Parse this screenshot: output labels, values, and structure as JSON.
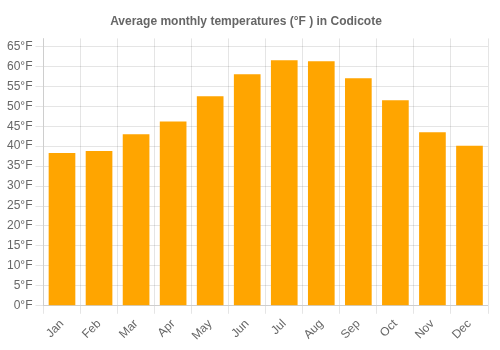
{
  "chart_data": {
    "type": "bar",
    "title": "Average monthly temperatures (°F ) in Codicote",
    "categories": [
      "Jan",
      "Feb",
      "Mar",
      "Apr",
      "May",
      "Jun",
      "Jul",
      "Aug",
      "Sep",
      "Oct",
      "Nov",
      "Dec"
    ],
    "values": [
      38.3,
      38.8,
      43.0,
      46.2,
      52.5,
      58.0,
      61.5,
      61.3,
      57.0,
      51.5,
      43.5,
      40.1
    ],
    "color": "#FFA500",
    "ylim": [
      0,
      67
    ],
    "yticks": [
      {
        "value": 0,
        "label": "0°F"
      },
      {
        "value": 5,
        "label": "5°F"
      },
      {
        "value": 10,
        "label": "10°F"
      },
      {
        "value": 15,
        "label": "15°F"
      },
      {
        "value": 20,
        "label": "20°F"
      },
      {
        "value": 25,
        "label": "25°F"
      },
      {
        "value": 30,
        "label": "30°F"
      },
      {
        "value": 35,
        "label": "35°F"
      },
      {
        "value": 40,
        "label": "40°F"
      },
      {
        "value": 45,
        "label": "45°F"
      },
      {
        "value": 50,
        "label": "50°F"
      },
      {
        "value": 55,
        "label": "55°F"
      },
      {
        "value": 60,
        "label": "60°F"
      },
      {
        "value": 65,
        "label": "65°F"
      }
    ],
    "grid": true
  }
}
